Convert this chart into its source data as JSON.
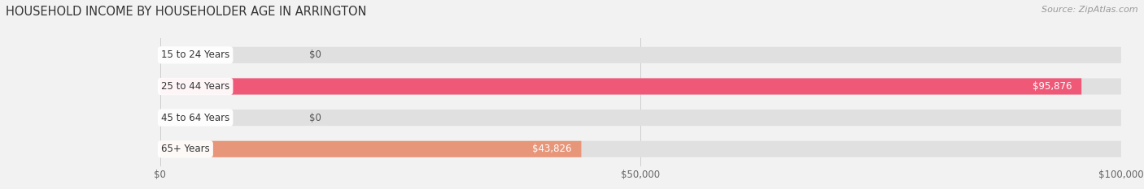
{
  "title": "HOUSEHOLD INCOME BY HOUSEHOLDER AGE IN ARRINGTON",
  "source": "Source: ZipAtlas.com",
  "categories": [
    "15 to 24 Years",
    "25 to 44 Years",
    "45 to 64 Years",
    "65+ Years"
  ],
  "values": [
    0,
    95876,
    0,
    43826
  ],
  "bar_colors": [
    "#aab0d8",
    "#f05878",
    "#f5c88a",
    "#e8967a"
  ],
  "bar_labels": [
    "$0",
    "$95,876",
    "$0",
    "$43,826"
  ],
  "xlim": [
    0,
    100000
  ],
  "xtick_values": [
    0,
    50000,
    100000
  ],
  "xtick_labels": [
    "$0",
    "$50,000",
    "$100,000"
  ],
  "background_color": "#f2f2f2",
  "bar_bg_color": "#e0e0e0",
  "title_fontsize": 10.5,
  "source_fontsize": 8,
  "label_fontsize": 8.5,
  "tick_fontsize": 8.5,
  "category_fontsize": 8.5,
  "bar_height": 0.52,
  "fig_width": 14.06,
  "fig_height": 2.33
}
